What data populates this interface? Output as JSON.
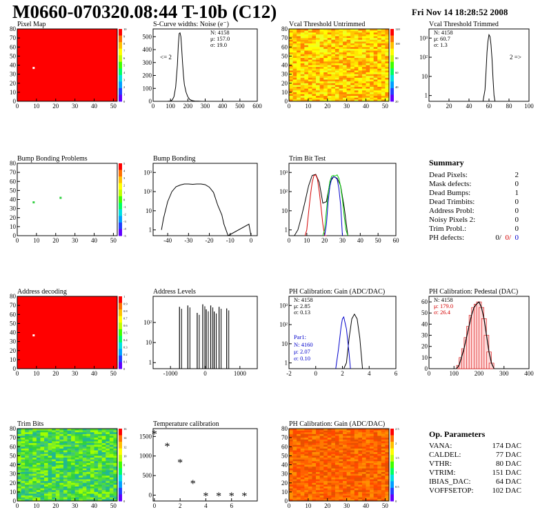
{
  "header": {
    "title": "M0660-070320.08:44 T-10b (C12)",
    "timestamp": "Fri Nov 14 18:28:52 2008"
  },
  "colors": {
    "hist_line": "#000000",
    "red_series": "#d40000",
    "green_series": "#00cc00",
    "blue_series": "#0000cc",
    "map_fill": "#ff0000"
  },
  "palette_labels": {
    "pixel_map": [
      "10",
      "9",
      "8",
      "7",
      "6",
      "5",
      "4",
      "3",
      "2",
      "1",
      "0"
    ],
    "vcal_untrimmed": [
      "120",
      "100",
      "80",
      "60",
      "40",
      "20"
    ],
    "bump_bonding_problems": [
      "5",
      "4",
      "3",
      "2",
      "1",
      "0",
      "-1",
      "-2",
      "-3",
      "-4",
      "-5"
    ],
    "address_decoding": [
      "1",
      "0.9",
      "0.8",
      "0.7",
      "0.6",
      "0.5",
      "0.4",
      "0.3",
      "0.2",
      "0.1",
      "0"
    ],
    "trim_bits": [
      "16",
      "14",
      "12",
      "10",
      "8",
      "6",
      "4",
      "2",
      "0"
    ],
    "ph_gain_map": [
      "2.5",
      "2",
      "1.5",
      "1",
      "0.5",
      "0"
    ]
  },
  "chart_data": [
    {
      "id": "pixel_map",
      "type": "heatmap",
      "title": "Pixel Map",
      "x_ticks": [
        "0",
        "10",
        "20",
        "30",
        "40",
        "50"
      ],
      "y_ticks": [
        "0",
        "10",
        "20",
        "30",
        "40",
        "50",
        "60",
        "70",
        "80"
      ],
      "xlim": [
        0,
        52
      ],
      "ylim": [
        0,
        80
      ],
      "zlim": [
        0,
        10
      ],
      "uniform_value": 10,
      "special_pixels": [
        {
          "col": 8,
          "row": 38,
          "value": 0
        }
      ]
    },
    {
      "id": "scurve_noise",
      "type": "line",
      "title": "S-Curve widths: Noise (e⁻)",
      "x_ticks": [
        "0",
        "100",
        "200",
        "300",
        "400",
        "500",
        "600"
      ],
      "y_ticks": [
        "0",
        "100",
        "200",
        "300",
        "400",
        "500"
      ],
      "xlim": [
        0,
        600
      ],
      "ylim": [
        0,
        560
      ],
      "x": [
        80,
        100,
        110,
        120,
        130,
        140,
        145,
        150,
        155,
        160,
        165,
        170,
        175,
        180,
        190,
        200,
        210,
        220,
        230,
        240,
        260,
        280
      ],
      "values": [
        0,
        2,
        10,
        35,
        110,
        280,
        430,
        525,
        530,
        500,
        400,
        290,
        200,
        130,
        70,
        35,
        15,
        8,
        4,
        2,
        1,
        0
      ],
      "stats": {
        "N": "N: 4158",
        "mean": "μ: 157.0",
        "sigma": "σ: 19.0"
      },
      "annotation": "<= 2"
    },
    {
      "id": "vcal_untrimmed",
      "type": "heatmap",
      "title": "Vcal Threshold Untrimmed",
      "x_ticks": [
        "0",
        "10",
        "20",
        "30",
        "40",
        "50"
      ],
      "y_ticks": [
        "0",
        "10",
        "20",
        "30",
        "40",
        "50",
        "60",
        "70",
        "80"
      ],
      "xlim": [
        0,
        52
      ],
      "ylim": [
        0,
        80
      ],
      "zlim": [
        0,
        130
      ],
      "colors": [
        "#ff8000",
        "#ffa000",
        "#ffc800",
        "#ffe600",
        "#ffff00",
        "#f0ff20"
      ]
    },
    {
      "id": "vcal_trimmed",
      "type": "line",
      "title": "Vcal Threshold Trimmed",
      "x_ticks": [
        "0",
        "20",
        "40",
        "60",
        "80",
        "100"
      ],
      "y_ticks": [
        "1",
        "10",
        "10²",
        "10³"
      ],
      "xlim": [
        0,
        100
      ],
      "ylim": [
        0.5,
        3000
      ],
      "log_y": true,
      "x": [
        54,
        56,
        57,
        58,
        59,
        60,
        61,
        62,
        63,
        64,
        65,
        66
      ],
      "values": [
        0,
        2,
        15,
        180,
        700,
        1500,
        1200,
        450,
        80,
        8,
        1,
        0
      ],
      "stats": {
        "N": "N: 4158",
        "mean": "μ: 60.7",
        "sigma": "σ:   1.3"
      },
      "annotation": "2 =>"
    },
    {
      "id": "bump_bonding_problems",
      "type": "heatmap",
      "title": "Bump Bonding Problems",
      "x_ticks": [
        "0",
        "10",
        "20",
        "30",
        "40",
        "50"
      ],
      "y_ticks": [
        "0",
        "10",
        "20",
        "30",
        "40",
        "50",
        "60",
        "70",
        "80"
      ],
      "xlim": [
        0,
        52
      ],
      "ylim": [
        0,
        80
      ],
      "zlim": [
        -5,
        5
      ],
      "special_pixels": [
        {
          "col": 8,
          "row": 38,
          "value": 1
        },
        {
          "col": 22,
          "row": 43,
          "value": 1
        }
      ]
    },
    {
      "id": "bump_bonding",
      "type": "line",
      "title": "Bump Bonding",
      "x_ticks": [
        "-40",
        "-30",
        "-20",
        "-10",
        "0"
      ],
      "y_ticks": [
        "1",
        "10",
        "10²",
        "10³"
      ],
      "xlim": [
        -47,
        3
      ],
      "ylim": [
        0.5,
        3000
      ],
      "log_y": true,
      "x": [
        -43,
        -42,
        -40,
        -38,
        -36,
        -34,
        -32,
        -30,
        -28,
        -26,
        -24,
        -22,
        -20,
        -18,
        -16,
        -14,
        -13,
        -12,
        -11,
        -1,
        0
      ],
      "values": [
        1,
        4,
        30,
        100,
        180,
        220,
        250,
        250,
        240,
        250,
        250,
        230,
        170,
        90,
        20,
        6,
        2,
        1,
        0,
        2,
        0
      ]
    },
    {
      "id": "trim_bit_test",
      "type": "line",
      "title": "Trim Bit Test",
      "x_ticks": [
        "0",
        "10",
        "20",
        "30",
        "40",
        "50",
        "60"
      ],
      "y_ticks": [
        "1",
        "10",
        "10²",
        "10³"
      ],
      "xlim": [
        0,
        60
      ],
      "ylim": [
        0.5,
        3000
      ],
      "log_y": true,
      "series": [
        {
          "color": "#000000",
          "x": [
            3,
            5,
            7,
            9,
            11,
            13,
            15,
            17,
            19,
            21,
            23,
            25,
            27,
            29,
            31,
            33
          ],
          "values": [
            0,
            1,
            5,
            30,
            200,
            700,
            800,
            300,
            25,
            30,
            300,
            600,
            500,
            200,
            15,
            0
          ]
        },
        {
          "color": "#d40000",
          "x": [
            9,
            10,
            11,
            12,
            13,
            14,
            15,
            16,
            17,
            18,
            19,
            20,
            21
          ],
          "values": [
            0,
            1,
            8,
            60,
            300,
            700,
            750,
            450,
            100,
            15,
            2,
            0,
            0
          ]
        },
        {
          "color": "#00cc00",
          "x": [
            19,
            20,
            21,
            22,
            23,
            24,
            25,
            26,
            27,
            28,
            29,
            30,
            31,
            32,
            33
          ],
          "values": [
            0,
            1,
            10,
            80,
            350,
            650,
            700,
            650,
            750,
            500,
            180,
            40,
            5,
            1,
            0
          ]
        },
        {
          "color": "#0000cc",
          "x": [
            20,
            21,
            22,
            23,
            24,
            25,
            26,
            27,
            28,
            29,
            30
          ],
          "values": [
            0,
            2,
            30,
            200,
            500,
            600,
            550,
            450,
            150,
            20,
            0
          ]
        }
      ]
    },
    {
      "id": "address_decoding",
      "type": "heatmap",
      "title": "Address decoding",
      "x_ticks": [
        "0",
        "10",
        "20",
        "30",
        "40",
        "50"
      ],
      "y_ticks": [
        "0",
        "10",
        "20",
        "30",
        "40",
        "50",
        "60",
        "70",
        "80"
      ],
      "xlim": [
        0,
        52
      ],
      "ylim": [
        0,
        80
      ],
      "zlim": [
        0,
        1
      ],
      "uniform_value": 1,
      "special_pixels": [
        {
          "col": 8,
          "row": 38,
          "value": 0
        }
      ]
    },
    {
      "id": "address_levels",
      "type": "bar",
      "title": "Address Levels",
      "x_ticks": [
        "-1000",
        "0",
        "1000"
      ],
      "y_ticks": [
        "1",
        "10",
        "10²"
      ],
      "xlim": [
        -1500,
        1500
      ],
      "ylim": [
        0.5,
        2000
      ],
      "log_y": true,
      "spikes": [
        {
          "x": -740,
          "value": 600
        },
        {
          "x": -500,
          "value": 700
        },
        {
          "x": -230,
          "value": 300
        },
        {
          "x": -70,
          "value": 800
        },
        {
          "x": 30,
          "value": 450
        },
        {
          "x": 160,
          "value": 700
        },
        {
          "x": 260,
          "value": 350
        },
        {
          "x": 400,
          "value": 600
        },
        {
          "x": 620,
          "value": 500
        }
      ]
    },
    {
      "id": "ph_calibration_gain",
      "type": "line",
      "title": "PH Calibration: Gain (ADC/DAC)",
      "x_ticks": [
        "-2",
        "0",
        "2",
        "4",
        "6"
      ],
      "y_ticks": [
        "1",
        "10",
        "10²",
        "10³"
      ],
      "xlim": [
        -2,
        6
      ],
      "ylim": [
        0.5,
        3000
      ],
      "log_y": true,
      "series": [
        {
          "color": "#000000",
          "x": [
            2.1,
            2.3,
            2.5,
            2.7,
            2.9,
            3.1,
            3.3,
            3.5
          ],
          "values": [
            0,
            1,
            20,
            200,
            350,
            200,
            20,
            0
          ]
        },
        {
          "color": "#0000cc",
          "x": [
            1.5,
            1.7,
            1.9,
            2.0,
            2.1,
            2.3,
            2.5,
            2.6
          ],
          "values": [
            0,
            5,
            80,
            200,
            250,
            60,
            3,
            0
          ]
        }
      ],
      "stats": {
        "N": "N: 4158",
        "mean": "μ: 2.85",
        "sigma": "σ: 0.13"
      },
      "stats2": {
        "label": "Par1:",
        "N": "N: 4160",
        "mean": "μ: 2.07",
        "sigma": "σ: 0.10"
      }
    },
    {
      "id": "ph_calibration_pedestal",
      "type": "bar",
      "title": "PH Calibration: Pedestal (DAC)",
      "x_ticks": [
        "0",
        "100",
        "200",
        "300",
        "400"
      ],
      "y_ticks": [
        "0",
        "10",
        "20",
        "30",
        "40",
        "50",
        "60"
      ],
      "xlim": [
        0,
        400
      ],
      "ylim": [
        0,
        65
      ],
      "x": [
        110,
        120,
        130,
        140,
        150,
        160,
        170,
        180,
        190,
        200,
        210,
        220,
        230,
        240,
        250,
        260
      ],
      "values": [
        0,
        3,
        10,
        18,
        28,
        38,
        48,
        55,
        58,
        60,
        55,
        45,
        30,
        15,
        5,
        0
      ],
      "stats": {
        "N": "N: 4158",
        "mean": "μ: 179.0",
        "sigma": "σ: 26.4"
      }
    },
    {
      "id": "trim_bits",
      "type": "heatmap",
      "title": "Trim Bits",
      "x_ticks": [
        "0",
        "10",
        "20",
        "30",
        "40",
        "50"
      ],
      "y_ticks": [
        "0",
        "10",
        "20",
        "30",
        "40",
        "50",
        "60",
        "70",
        "80"
      ],
      "xlim": [
        0,
        52
      ],
      "ylim": [
        0,
        80
      ],
      "zlim": [
        0,
        16
      ],
      "colors": [
        "#30d040",
        "#50e030",
        "#80f020",
        "#a0ff00",
        "#40c870",
        "#20b890"
      ]
    },
    {
      "id": "temperature_calibration",
      "type": "scatter",
      "title": "Temperature calibration",
      "x_ticks": [
        "0",
        "2",
        "4",
        "6"
      ],
      "y_ticks": [
        "0",
        "500",
        "1000",
        "1500"
      ],
      "xlim": [
        -0.1,
        8
      ],
      "ylim": [
        -150,
        1700
      ],
      "x": [
        0,
        1,
        2,
        3,
        4,
        5,
        6,
        7
      ],
      "values": [
        1560,
        1240,
        830,
        290,
        -30,
        -30,
        -30,
        -30
      ]
    },
    {
      "id": "ph_gain_map",
      "type": "heatmap",
      "title": "PH Calibration: Gain (ADC/DAC)",
      "x_ticks": [
        "0",
        "10",
        "20",
        "30",
        "40",
        "50"
      ],
      "y_ticks": [
        "0",
        "10",
        "20",
        "30",
        "40",
        "50",
        "60",
        "70",
        "80"
      ],
      "xlim": [
        0,
        52
      ],
      "ylim": [
        0,
        80
      ],
      "zlim": [
        0,
        3
      ],
      "colors": [
        "#ff6000",
        "#ff7800",
        "#ff9000",
        "#ff4800",
        "#e85000"
      ]
    }
  ],
  "summary": {
    "title": "Summary",
    "rows": [
      {
        "label": "Dead Pixels:",
        "value": "2"
      },
      {
        "label": "Mask defects:",
        "value": "0"
      },
      {
        "label": "Dead Bumps:",
        "value": "1"
      },
      {
        "label": "Dead Trimbits:",
        "value": "0"
      },
      {
        "label": "Address Probl:",
        "value": "0"
      },
      {
        "label": "Noisy Pixels 2:",
        "value": "0"
      },
      {
        "label": "Trim Probl.:",
        "value": "0"
      }
    ],
    "ph_defects": {
      "label": "PH defects:",
      "v1": "0/",
      "v2": "0/",
      "v3": "0"
    }
  },
  "op_parameters": {
    "title": "Op. Parameters",
    "rows": [
      {
        "label": "VANA:",
        "value": "174 DAC"
      },
      {
        "label": "CALDEL:",
        "value": "77 DAC"
      },
      {
        "label": "VTHR:",
        "value": "80 DAC"
      },
      {
        "label": "VTRIM:",
        "value": "151 DAC"
      },
      {
        "label": "IBIAS_DAC:",
        "value": "64 DAC"
      },
      {
        "label": "VOFFSETOP:",
        "value": "102 DAC"
      }
    ]
  }
}
